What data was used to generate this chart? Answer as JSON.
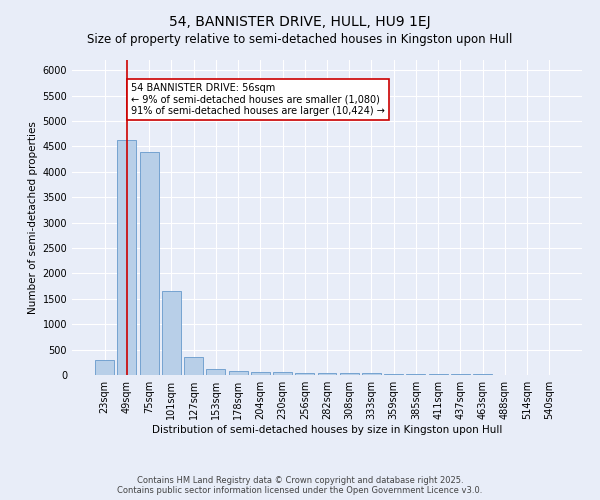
{
  "title": "54, BANNISTER DRIVE, HULL, HU9 1EJ",
  "subtitle": "Size of property relative to semi-detached houses in Kingston upon Hull",
  "xlabel": "Distribution of semi-detached houses by size in Kingston upon Hull",
  "ylabel": "Number of semi-detached properties",
  "categories": [
    "23sqm",
    "49sqm",
    "75sqm",
    "101sqm",
    "127sqm",
    "153sqm",
    "178sqm",
    "204sqm",
    "230sqm",
    "256sqm",
    "282sqm",
    "308sqm",
    "333sqm",
    "359sqm",
    "385sqm",
    "411sqm",
    "437sqm",
    "463sqm",
    "488sqm",
    "514sqm",
    "540sqm"
  ],
  "values": [
    300,
    4620,
    4380,
    1650,
    355,
    120,
    75,
    55,
    50,
    45,
    40,
    35,
    30,
    25,
    20,
    15,
    12,
    10,
    8,
    5,
    4
  ],
  "bar_color": "#b8cfe8",
  "bar_edge_color": "#6699cc",
  "vline_x": 1,
  "vline_color": "#cc0000",
  "annotation_text": "54 BANNISTER DRIVE: 56sqm\n← 9% of semi-detached houses are smaller (1,080)\n91% of semi-detached houses are larger (10,424) →",
  "annotation_box_color": "#ffffff",
  "annotation_box_edge": "#cc0000",
  "ylim": [
    0,
    6200
  ],
  "yticks": [
    0,
    500,
    1000,
    1500,
    2000,
    2500,
    3000,
    3500,
    4000,
    4500,
    5000,
    5500,
    6000
  ],
  "footer": "Contains HM Land Registry data © Crown copyright and database right 2025.\nContains public sector information licensed under the Open Government Licence v3.0.",
  "background_color": "#e8edf8",
  "grid_color": "#ffffff",
  "title_fontsize": 10,
  "subtitle_fontsize": 8.5,
  "axis_label_fontsize": 7.5,
  "tick_fontsize": 7,
  "footer_fontsize": 6,
  "annotation_fontsize": 7
}
